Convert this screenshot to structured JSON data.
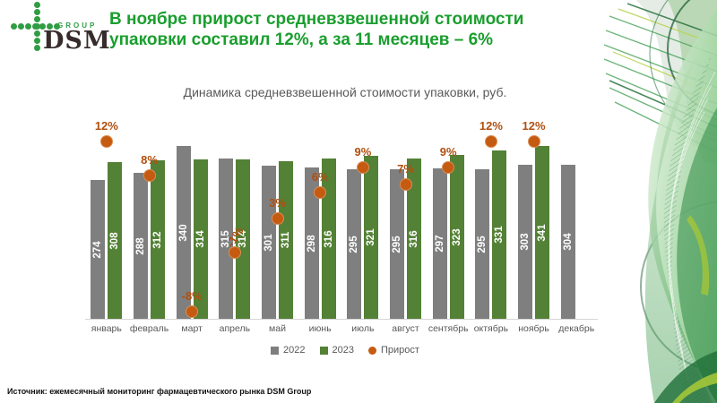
{
  "logo": {
    "icon": "dsm-cross-icon",
    "group_label": "GROUP",
    "dsm_label": "DSM"
  },
  "header": {
    "title": "В ноябре прирост средневзвешенной стоимости упаковки составил 12%, а за 11 месяцев – 6%"
  },
  "chart_data": {
    "type": "bar",
    "title": "Динамика средневзвешенной стоимости упаковки, руб.",
    "categories": [
      "январь",
      "февраль",
      "март",
      "апрель",
      "май",
      "июнь",
      "июль",
      "август",
      "сентябрь",
      "октябрь",
      "ноябрь",
      "декабрь"
    ],
    "series": [
      {
        "name": "2022",
        "color": "#7f7f7f",
        "values": [
          274,
          288,
          340,
          315,
          301,
          298,
          295,
          295,
          297,
          295,
          303,
          304
        ]
      },
      {
        "name": "2023",
        "color": "#538135",
        "values": [
          308,
          312,
          314,
          314,
          311,
          316,
          321,
          316,
          323,
          331,
          341,
          null
        ]
      }
    ],
    "growth": {
      "name": "Прирост",
      "color": "#c55a11",
      "values": [
        12,
        8,
        -8,
        -1,
        3,
        6,
        9,
        7,
        9,
        12,
        12,
        null
      ],
      "labels": [
        "12%",
        "8%",
        "-8%",
        "-1%",
        "3%",
        "6%",
        "9%",
        "7%",
        "9%",
        "12%",
        "12%",
        ""
      ],
      "tilt": [
        false,
        false,
        false,
        true,
        false,
        false,
        false,
        false,
        false,
        false,
        false,
        false
      ]
    },
    "ylim": [
      0,
      360
    ],
    "grid": false,
    "legend_position": "bottom",
    "bar_label_color": "#ffffff",
    "growth_label_color": "#b04f0f"
  },
  "footer": {
    "source": "Источник: ежемесячный мониторинг фармацевтического рынка DSM Group"
  }
}
